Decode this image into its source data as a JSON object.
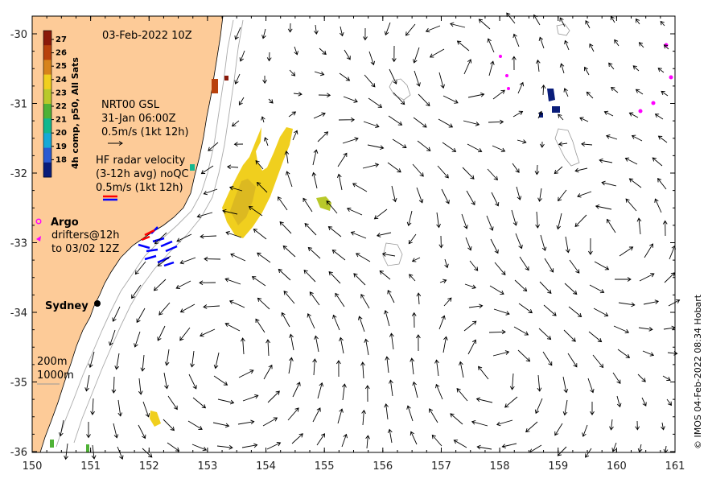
{
  "map": {
    "date_title": "03-Feb-2022 10Z",
    "x_ticks": [
      "150",
      "151",
      "152",
      "153",
      "154",
      "155",
      "156",
      "157",
      "158",
      "159",
      "160",
      "161"
    ],
    "y_ticks": [
      "-30",
      "-31",
      "-32",
      "-33",
      "-34",
      "-35",
      "-36"
    ],
    "colorbar": {
      "title": "4h comp, p50, All Sats",
      "ticks": [
        "27",
        "26",
        "25",
        "24",
        "23",
        "22",
        "21",
        "20",
        "19",
        "18"
      ],
      "colors": [
        "#8b1a0a",
        "#b8410c",
        "#d7831a",
        "#f0cf1e",
        "#b9c92a",
        "#4fb236",
        "#13b78e",
        "#17a9d6",
        "#2c5ad1",
        "#0a1d7a"
      ]
    },
    "gsl_legend": {
      "line1": "NRT00 GSL",
      "line2": "31-Jan 06:00Z",
      "line3": "0.5m/s (1kt 12h)"
    },
    "hf_legend": {
      "line1": "HF radar velocity",
      "line2": "(3-12h avg) noQC",
      "line3": "0.5m/s (1kt 12h)"
    },
    "argo_legend": {
      "title": "Argo",
      "line1": "drifters@12h",
      "line2": "to 03/02 12Z"
    },
    "city": "Sydney",
    "isobaths": {
      "a": "200m",
      "b": "1000m"
    },
    "credit": "© IMOS 04-Feb-2022 08:34 Hobart",
    "colors": {
      "land": "#fdcb98",
      "argo": "#ff00ff",
      "hf_red": "#ff0000",
      "hf_blue": "#0000ff"
    }
  }
}
